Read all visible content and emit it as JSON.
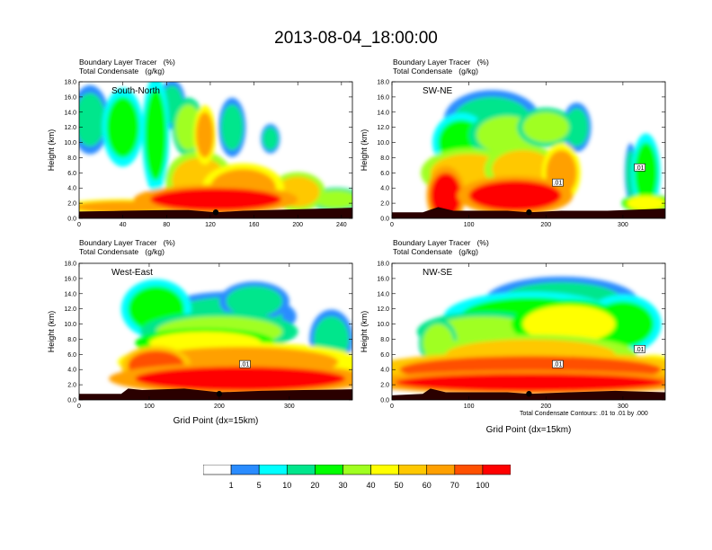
{
  "title": "2013-08-04_18:00:00",
  "variable_label": "Boundary Layer Tracer",
  "variable_units": "(%)",
  "contour_label": "Total Condensate",
  "contour_units": "(g/kg)",
  "x_axis_title": "Grid Point (dx=15km)",
  "y_axis_title": "Height (km)",
  "contour_note": "Total Condensate Contours: .01 to .01 by .000",
  "colors": [
    "#ffffff",
    "#2a8cff",
    "#00ffff",
    "#00e68c",
    "#00ff00",
    "#a0ff20",
    "#ffff00",
    "#ffc800",
    "#ffa000",
    "#ff5000",
    "#ff0000"
  ],
  "colorbar_labels": [
    "1",
    "5",
    "10",
    "20",
    "30",
    "40",
    "50",
    "60",
    "70",
    "100"
  ],
  "chart_data": [
    {
      "type": "heatmap",
      "panel_label": "South-North",
      "xlim": [
        0,
        250
      ],
      "ylim": [
        0,
        18
      ],
      "xticks": [
        "0",
        "40",
        "80",
        "120",
        "160",
        "200",
        "240"
      ],
      "xtick_values": [
        0,
        40,
        80,
        120,
        160,
        200,
        240
      ],
      "yticks": [
        "0.0",
        "2.0",
        "4.0",
        "6.0",
        "8.0",
        "10.0",
        "12.0",
        "14.0",
        "16.0",
        "18.0"
      ],
      "ytick_values": [
        0,
        2,
        4,
        6,
        8,
        10,
        12,
        14,
        16,
        18
      ],
      "marker_x": 125,
      "contour_box_labels": [],
      "terrain": [
        [
          0,
          0.9
        ],
        [
          40,
          1.0
        ],
        [
          80,
          1.1
        ],
        [
          100,
          1.1
        ],
        [
          125,
          0.8
        ],
        [
          150,
          1.0
        ],
        [
          200,
          1.2
        ],
        [
          250,
          1.4
        ]
      ],
      "blobs": [
        {
          "x": 10,
          "y": 13,
          "rx": 14,
          "ry": 3.5,
          "v": 3
        },
        {
          "x": 40,
          "y": 12,
          "rx": 15,
          "ry": 4,
          "v": 4
        },
        {
          "x": 70,
          "y": 11,
          "rx": 10,
          "ry": 6,
          "v": 4
        },
        {
          "x": 85,
          "y": 15,
          "rx": 10,
          "ry": 2.5,
          "v": 3
        },
        {
          "x": 100,
          "y": 12,
          "rx": 12,
          "ry": 3,
          "v": 5
        },
        {
          "x": 115,
          "y": 11,
          "rx": 8,
          "ry": 3,
          "v": 8
        },
        {
          "x": 140,
          "y": 12,
          "rx": 10,
          "ry": 3,
          "v": 3
        },
        {
          "x": 175,
          "y": 10.5,
          "rx": 7,
          "ry": 1.5,
          "v": 3
        },
        {
          "x": 110,
          "y": 5,
          "rx": 25,
          "ry": 3,
          "v": 7
        },
        {
          "x": 150,
          "y": 4,
          "rx": 30,
          "ry": 2.5,
          "v": 8
        },
        {
          "x": 200,
          "y": 3.5,
          "rx": 20,
          "ry": 2,
          "v": 7
        },
        {
          "x": 235,
          "y": 2.5,
          "rx": 20,
          "ry": 1.2,
          "v": 5
        },
        {
          "x": 125,
          "y": 2.5,
          "rx": 60,
          "ry": 1.5,
          "v": 10
        },
        {
          "x": 40,
          "y": 1.5,
          "rx": 45,
          "ry": 0.8,
          "v": 8
        }
      ]
    },
    {
      "type": "heatmap",
      "panel_label": "SW-NE",
      "xlim": [
        0,
        355
      ],
      "ylim": [
        0,
        18
      ],
      "xticks": [
        "0",
        "100",
        "200",
        "300"
      ],
      "xtick_values": [
        0,
        100,
        200,
        300
      ],
      "yticks": [
        "0.0",
        "2.0",
        "4.0",
        "6.0",
        "8.0",
        "10.0",
        "12.0",
        "14.0",
        "16.0",
        "18.0"
      ],
      "ytick_values": [
        0,
        2,
        4,
        6,
        8,
        10,
        12,
        14,
        16,
        18
      ],
      "marker_x": 178,
      "contour_box_labels": [
        ".01",
        ".01"
      ],
      "terrain": [
        [
          0,
          0.8
        ],
        [
          40,
          0.8
        ],
        [
          60,
          1.5
        ],
        [
          80,
          1.0
        ],
        [
          150,
          1.0
        ],
        [
          178,
          0.8
        ],
        [
          220,
          1.0
        ],
        [
          280,
          1.0
        ],
        [
          355,
          1.3
        ]
      ],
      "blobs": [
        {
          "x": 130,
          "y": 13,
          "rx": 50,
          "ry": 3,
          "v": 3
        },
        {
          "x": 150,
          "y": 11,
          "rx": 40,
          "ry": 2.5,
          "v": 5
        },
        {
          "x": 200,
          "y": 12,
          "rx": 30,
          "ry": 2,
          "v": 5
        },
        {
          "x": 90,
          "y": 10,
          "rx": 30,
          "ry": 3,
          "v": 4
        },
        {
          "x": 240,
          "y": 12,
          "rx": 15,
          "ry": 2.5,
          "v": 3
        },
        {
          "x": 100,
          "y": 6,
          "rx": 50,
          "ry": 2.5,
          "v": 7
        },
        {
          "x": 170,
          "y": 6.5,
          "rx": 40,
          "ry": 2.5,
          "v": 7
        },
        {
          "x": 220,
          "y": 6,
          "rx": 20,
          "ry": 3,
          "v": 8
        },
        {
          "x": 70,
          "y": 3,
          "rx": 20,
          "ry": 3,
          "v": 10
        },
        {
          "x": 160,
          "y": 3,
          "rx": 60,
          "ry": 2,
          "v": 10
        },
        {
          "x": 330,
          "y": 6,
          "rx": 15,
          "ry": 4,
          "v": 4
        },
        {
          "x": 310,
          "y": 6,
          "rx": 6,
          "ry": 3,
          "v": 3
        },
        {
          "x": 330,
          "y": 2,
          "rx": 25,
          "ry": 1,
          "v": 6
        }
      ]
    },
    {
      "type": "heatmap",
      "panel_label": "West-East",
      "xlim": [
        0,
        390
      ],
      "ylim": [
        0,
        18
      ],
      "xticks": [
        "0",
        "100",
        "200",
        "300"
      ],
      "xtick_values": [
        0,
        100,
        200,
        300
      ],
      "yticks": [
        "0.0",
        "2.0",
        "4.0",
        "6.0",
        "8.0",
        "10.0",
        "12.0",
        "14.0",
        "16.0",
        "18.0"
      ],
      "ytick_values": [
        0,
        2,
        4,
        6,
        8,
        10,
        12,
        14,
        16,
        18
      ],
      "marker_x": 200,
      "contour_box_labels": [
        ".01"
      ],
      "terrain": [
        [
          0,
          0.8
        ],
        [
          60,
          0.8
        ],
        [
          70,
          1.5
        ],
        [
          90,
          1.3
        ],
        [
          150,
          1.5
        ],
        [
          200,
          1.0
        ],
        [
          260,
          1.2
        ],
        [
          320,
          1.3
        ],
        [
          390,
          1.4
        ]
      ],
      "blobs": [
        {
          "x": 110,
          "y": 12,
          "rx": 40,
          "ry": 3,
          "v": 4
        },
        {
          "x": 210,
          "y": 11,
          "rx": 80,
          "ry": 2.5,
          "v": 3
        },
        {
          "x": 250,
          "y": 13,
          "rx": 40,
          "ry": 2,
          "v": 3
        },
        {
          "x": 200,
          "y": 9,
          "rx": 90,
          "ry": 2,
          "v": 5
        },
        {
          "x": 180,
          "y": 7.5,
          "rx": 80,
          "ry": 1.5,
          "v": 6
        },
        {
          "x": 230,
          "y": 5,
          "rx": 140,
          "ry": 2,
          "v": 8
        },
        {
          "x": 230,
          "y": 2.8,
          "rx": 150,
          "ry": 1.6,
          "v": 10
        },
        {
          "x": 360,
          "y": 8,
          "rx": 25,
          "ry": 3,
          "v": 3
        },
        {
          "x": 110,
          "y": 4.5,
          "rx": 40,
          "ry": 2,
          "v": 9
        }
      ]
    },
    {
      "type": "heatmap",
      "panel_label": "NW-SE",
      "xlim": [
        0,
        355
      ],
      "ylim": [
        0,
        18
      ],
      "xticks": [
        "0",
        "100",
        "200",
        "300"
      ],
      "xtick_values": [
        0,
        100,
        200,
        300
      ],
      "yticks": [
        "0.0",
        "2.0",
        "4.0",
        "6.0",
        "8.0",
        "10.0",
        "12.0",
        "14.0",
        "16.0",
        "18.0"
      ],
      "ytick_values": [
        0,
        2,
        4,
        6,
        8,
        10,
        12,
        14,
        16,
        18
      ],
      "marker_x": 178,
      "contour_box_labels": [
        ".01",
        ".01"
      ],
      "terrain": [
        [
          0,
          0.6
        ],
        [
          40,
          0.8
        ],
        [
          50,
          1.5
        ],
        [
          70,
          1.0
        ],
        [
          150,
          1.0
        ],
        [
          178,
          0.8
        ],
        [
          230,
          1.0
        ],
        [
          290,
          1.2
        ],
        [
          355,
          1.0
        ]
      ],
      "blobs": [
        {
          "x": 220,
          "y": 13,
          "rx": 80,
          "ry": 2.5,
          "v": 3
        },
        {
          "x": 180,
          "y": 11,
          "rx": 90,
          "ry": 2.5,
          "v": 4
        },
        {
          "x": 120,
          "y": 9,
          "rx": 70,
          "ry": 2,
          "v": 5
        },
        {
          "x": 230,
          "y": 10,
          "rx": 60,
          "ry": 2.5,
          "v": 6
        },
        {
          "x": 300,
          "y": 10,
          "rx": 40,
          "ry": 3,
          "v": 4
        },
        {
          "x": 180,
          "y": 6,
          "rx": 110,
          "ry": 2,
          "v": 7
        },
        {
          "x": 180,
          "y": 4,
          "rx": 170,
          "ry": 1.8,
          "v": 9
        },
        {
          "x": 180,
          "y": 2.3,
          "rx": 175,
          "ry": 1.2,
          "v": 10
        },
        {
          "x": 60,
          "y": 7.5,
          "rx": 20,
          "ry": 2.5,
          "v": 5
        },
        {
          "x": 340,
          "y": 4,
          "rx": 25,
          "ry": 1.5,
          "v": 8
        }
      ]
    }
  ]
}
